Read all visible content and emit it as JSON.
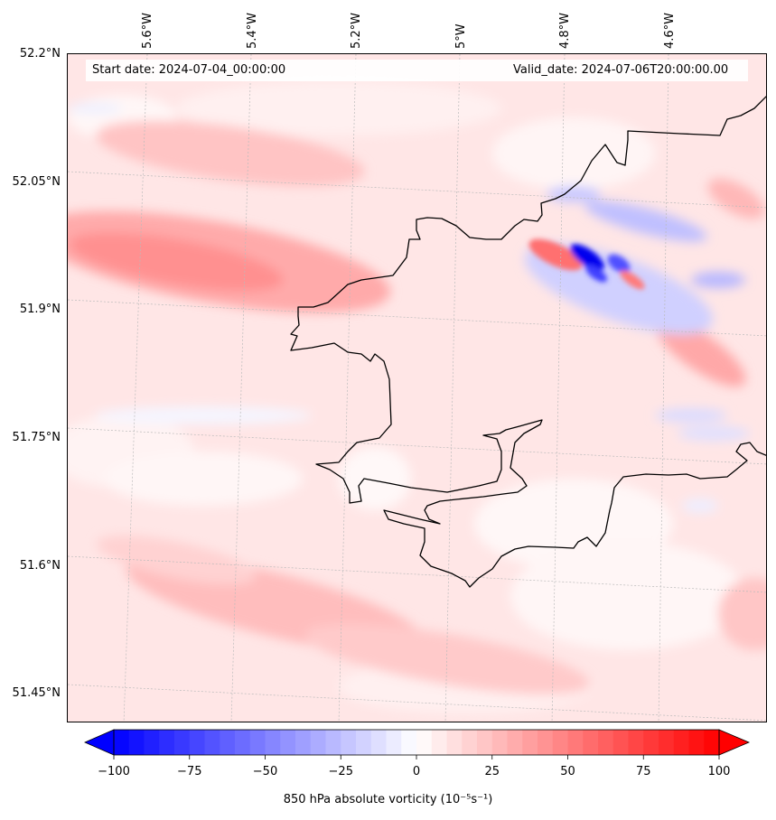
{
  "header": {
    "start_date": "Start date: 2024-07-04_00:00:00",
    "valid_date": "Valid_date: 2024-07-06T20:00:00.00"
  },
  "axes": {
    "lat_labels": [
      "52.2°N",
      "52.05°N",
      "51.9°N",
      "51.75°N",
      "51.6°N",
      "51.45°N"
    ],
    "lon_labels": [
      "5.6°W",
      "5.4°W",
      "5.2°W",
      "5°W",
      "4.8°W",
      "4.6°W"
    ]
  },
  "colorbar": {
    "ticks": [
      "−100",
      "−75",
      "−50",
      "−25",
      "0",
      "25",
      "50",
      "75",
      "100"
    ],
    "tick_values": [
      -100,
      -75,
      -50,
      -25,
      0,
      25,
      50,
      75,
      100
    ],
    "min": -100,
    "max": 100,
    "label": "850 hPa absolute vorticity (10⁻⁵s⁻¹)",
    "colors": {
      "negative": "#0000ff",
      "zero": "#ffffff",
      "positive": "#ff0000"
    }
  },
  "map": {
    "coastline_color": "#000000",
    "gridline_color": "#bbbbbb"
  }
}
